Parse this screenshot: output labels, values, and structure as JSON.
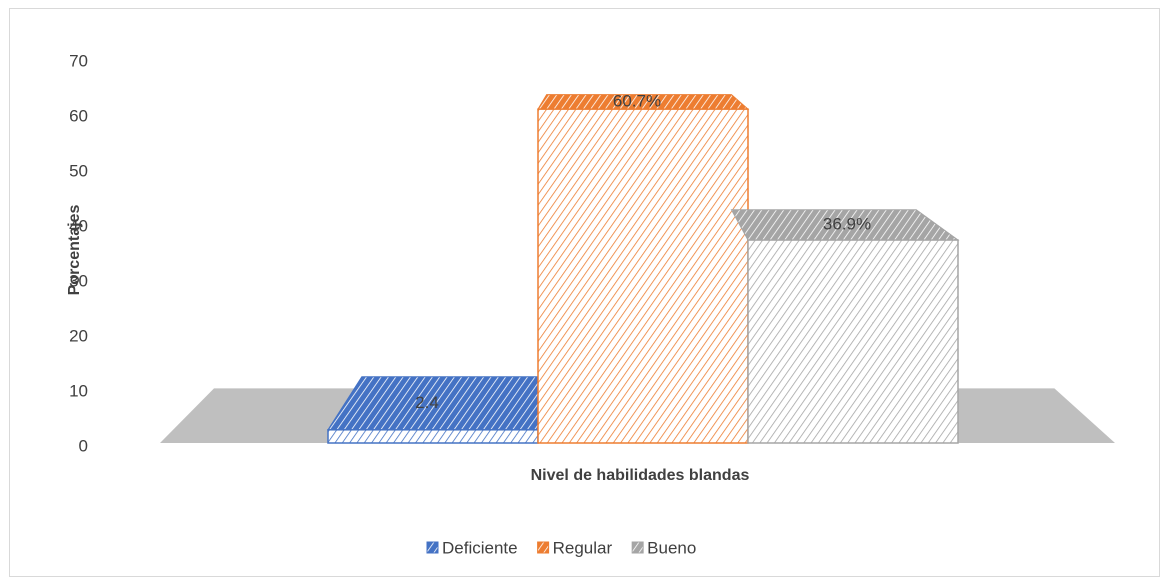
{
  "chart_data": {
    "type": "bar3d",
    "categories": [
      "Nivel de habilidades blandas"
    ],
    "y_label": "Porcentajes",
    "series": [
      {
        "name": "Deficiente",
        "color": "#4472c4",
        "values": [
          2.4
        ],
        "value_labels": [
          "2.4"
        ]
      },
      {
        "name": "Regular",
        "color": "#ed7d31",
        "values": [
          60.7
        ],
        "value_labels": [
          "60.7%"
        ]
      },
      {
        "name": "Bueno",
        "color": "#a5a5a5",
        "values": [
          36.9
        ],
        "value_labels": [
          "36.9%"
        ]
      }
    ],
    "ylim": [
      0,
      70
    ],
    "yticks": [
      0,
      10,
      20,
      30,
      40,
      50,
      60,
      70
    ],
    "grid": false,
    "legend": "bottom"
  }
}
